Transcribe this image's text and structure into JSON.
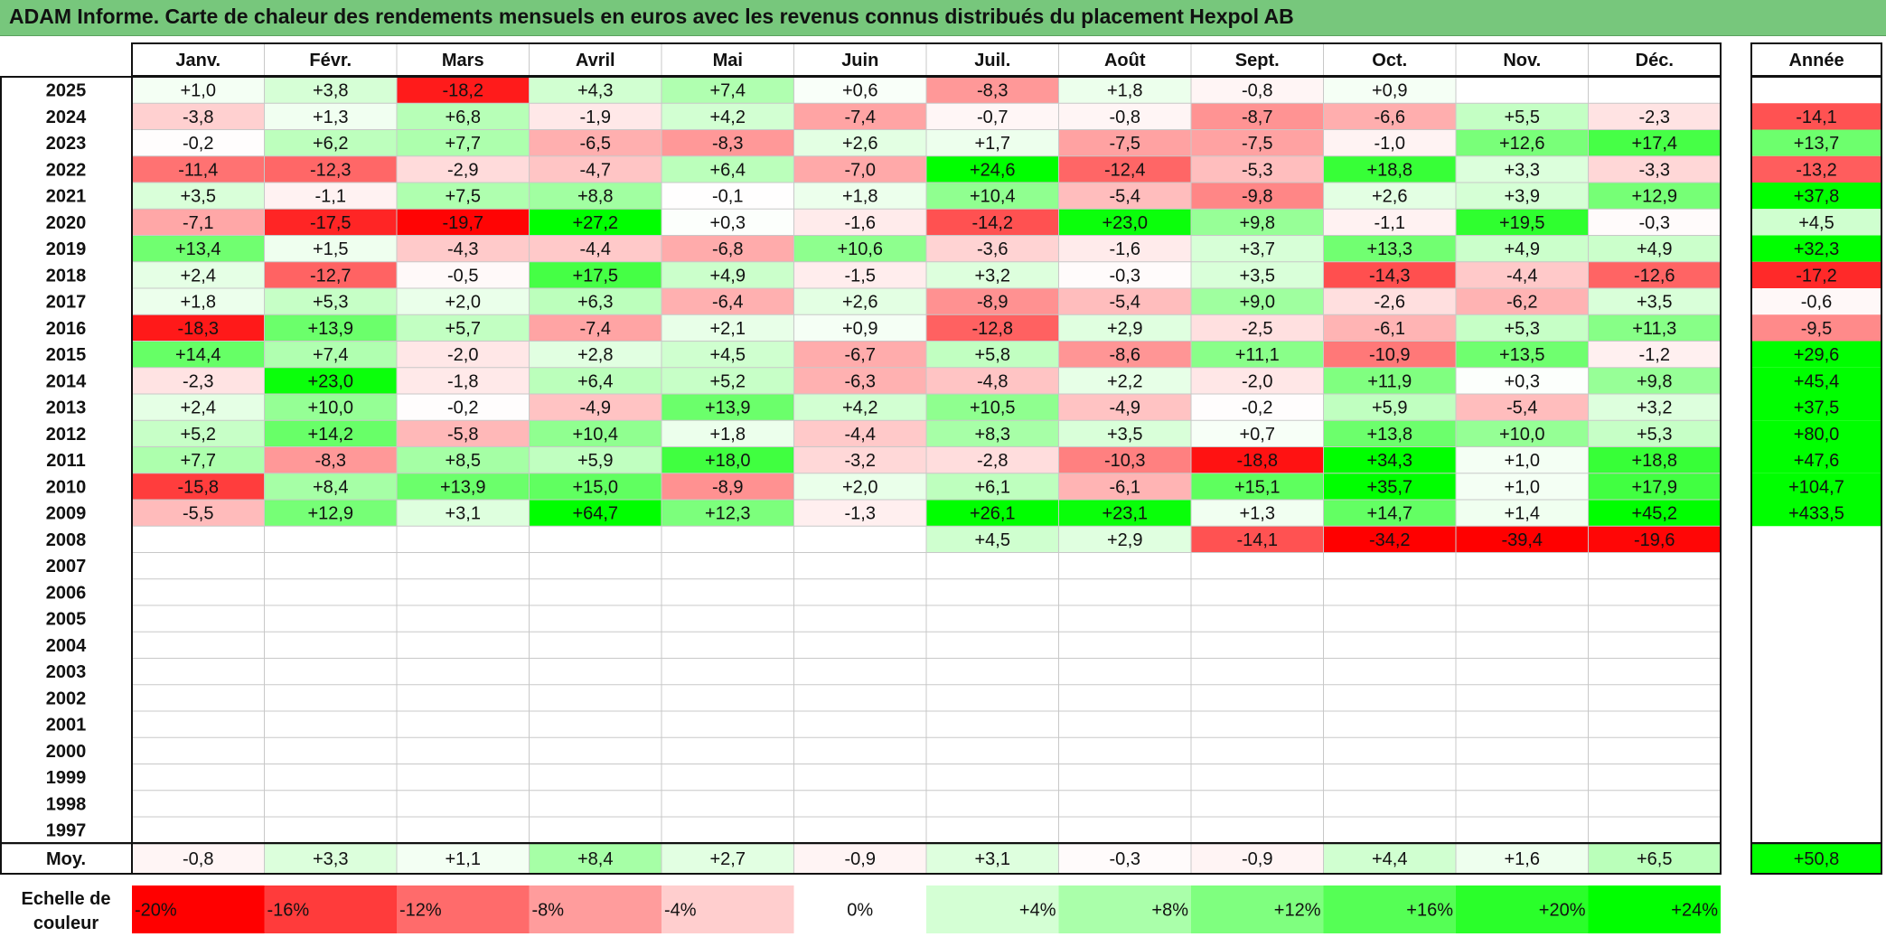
{
  "title": "ADAM Informe. Carte de chaleur des rendements mensuels en euros avec les revenus connus distribués du placement Hexpol AB",
  "chart_data": {
    "type": "heatmap",
    "columns": [
      "Janv.",
      "Févr.",
      "Mars",
      "Avril",
      "Mai",
      "Juin",
      "Juil.",
      "Août",
      "Sept.",
      "Oct.",
      "Nov.",
      "Déc."
    ],
    "year_column_label": "Année",
    "rows": [
      {
        "year": "2025",
        "months": [
          "+1,0",
          "+3,8",
          "-18,2",
          "+4,3",
          "+7,4",
          "+0,6",
          "-8,3",
          "+1,8",
          "-0,8",
          "+0,9",
          "",
          ""
        ],
        "annual": ""
      },
      {
        "year": "2024",
        "months": [
          "-3,8",
          "+1,3",
          "+6,8",
          "-1,9",
          "+4,2",
          "-7,4",
          "-0,7",
          "-0,8",
          "-8,7",
          "-6,6",
          "+5,5",
          "-2,3"
        ],
        "annual": "-14,1"
      },
      {
        "year": "2023",
        "months": [
          "-0,2",
          "+6,2",
          "+7,7",
          "-6,5",
          "-8,3",
          "+2,6",
          "+1,7",
          "-7,5",
          "-7,5",
          "-1,0",
          "+12,6",
          "+17,4"
        ],
        "annual": "+13,7"
      },
      {
        "year": "2022",
        "months": [
          "-11,4",
          "-12,3",
          "-2,9",
          "-4,7",
          "+6,4",
          "-7,0",
          "+24,6",
          "-12,4",
          "-5,3",
          "+18,8",
          "+3,3",
          "-3,3"
        ],
        "annual": "-13,2"
      },
      {
        "year": "2021",
        "months": [
          "+3,5",
          "-1,1",
          "+7,5",
          "+8,8",
          "-0,1",
          "+1,8",
          "+10,4",
          "-5,4",
          "-9,8",
          "+2,6",
          "+3,9",
          "+12,9"
        ],
        "annual": "+37,8"
      },
      {
        "year": "2020",
        "months": [
          "-7,1",
          "-17,5",
          "-19,7",
          "+27,2",
          "+0,3",
          "-1,6",
          "-14,2",
          "+23,0",
          "+9,8",
          "-1,1",
          "+19,5",
          "-0,3"
        ],
        "annual": "+4,5"
      },
      {
        "year": "2019",
        "months": [
          "+13,4",
          "+1,5",
          "-4,3",
          "-4,4",
          "-6,8",
          "+10,6",
          "-3,6",
          "-1,6",
          "+3,7",
          "+13,3",
          "+4,9",
          "+4,9"
        ],
        "annual": "+32,3"
      },
      {
        "year": "2018",
        "months": [
          "+2,4",
          "-12,7",
          "-0,5",
          "+17,5",
          "+4,9",
          "-1,5",
          "+3,2",
          "-0,3",
          "+3,5",
          "-14,3",
          "-4,4",
          "-12,6"
        ],
        "annual": "-17,2"
      },
      {
        "year": "2017",
        "months": [
          "+1,8",
          "+5,3",
          "+2,0",
          "+6,3",
          "-6,4",
          "+2,6",
          "-8,9",
          "-5,4",
          "+9,0",
          "-2,6",
          "-6,2",
          "+3,5"
        ],
        "annual": "-0,6"
      },
      {
        "year": "2016",
        "months": [
          "-18,3",
          "+13,9",
          "+5,7",
          "-7,4",
          "+2,1",
          "+0,9",
          "-12,8",
          "+2,9",
          "-2,5",
          "-6,1",
          "+5,3",
          "+11,3"
        ],
        "annual": "-9,5"
      },
      {
        "year": "2015",
        "months": [
          "+14,4",
          "+7,4",
          "-2,0",
          "+2,8",
          "+4,5",
          "-6,7",
          "+5,8",
          "-8,6",
          "+11,1",
          "-10,9",
          "+13,5",
          "-1,2"
        ],
        "annual": "+29,6"
      },
      {
        "year": "2014",
        "months": [
          "-2,3",
          "+23,0",
          "-1,8",
          "+6,4",
          "+5,2",
          "-6,3",
          "-4,8",
          "+2,2",
          "-2,0",
          "+11,9",
          "+0,3",
          "+9,8"
        ],
        "annual": "+45,4"
      },
      {
        "year": "2013",
        "months": [
          "+2,4",
          "+10,0",
          "-0,2",
          "-4,9",
          "+13,9",
          "+4,2",
          "+10,5",
          "-4,9",
          "-0,2",
          "+5,9",
          "-5,4",
          "+3,2"
        ],
        "annual": "+37,5"
      },
      {
        "year": "2012",
        "months": [
          "+5,2",
          "+14,2",
          "-5,8",
          "+10,4",
          "+1,8",
          "-4,4",
          "+8,3",
          "+3,5",
          "+0,7",
          "+13,8",
          "+10,0",
          "+5,3"
        ],
        "annual": "+80,0"
      },
      {
        "year": "2011",
        "months": [
          "+7,7",
          "-8,3",
          "+8,5",
          "+5,9",
          "+18,0",
          "-3,2",
          "-2,8",
          "-10,3",
          "-18,8",
          "+34,3",
          "+1,0",
          "+18,8"
        ],
        "annual": "+47,6"
      },
      {
        "year": "2010",
        "months": [
          "-15,8",
          "+8,4",
          "+13,9",
          "+15,0",
          "-8,9",
          "+2,0",
          "+6,1",
          "-6,1",
          "+15,1",
          "+35,7",
          "+1,0",
          "+17,9"
        ],
        "annual": "+104,7"
      },
      {
        "year": "2009",
        "months": [
          "-5,5",
          "+12,9",
          "+3,1",
          "+64,7",
          "+12,3",
          "-1,3",
          "+26,1",
          "+23,1",
          "+1,3",
          "+14,7",
          "+1,4",
          "+45,2"
        ],
        "annual": "+433,5"
      },
      {
        "year": "2008",
        "months": [
          "",
          "",
          "",
          "",
          "",
          "",
          "+4,5",
          "+2,9",
          "-14,1",
          "-34,2",
          "-39,4",
          "-19,6"
        ],
        "annual": ""
      },
      {
        "year": "2007",
        "months": [
          "",
          "",
          "",
          "",
          "",
          "",
          "",
          "",
          "",
          "",
          "",
          ""
        ],
        "annual": ""
      },
      {
        "year": "2006",
        "months": [
          "",
          "",
          "",
          "",
          "",
          "",
          "",
          "",
          "",
          "",
          "",
          ""
        ],
        "annual": ""
      },
      {
        "year": "2005",
        "months": [
          "",
          "",
          "",
          "",
          "",
          "",
          "",
          "",
          "",
          "",
          "",
          ""
        ],
        "annual": ""
      },
      {
        "year": "2004",
        "months": [
          "",
          "",
          "",
          "",
          "",
          "",
          "",
          "",
          "",
          "",
          "",
          ""
        ],
        "annual": ""
      },
      {
        "year": "2003",
        "months": [
          "",
          "",
          "",
          "",
          "",
          "",
          "",
          "",
          "",
          "",
          "",
          ""
        ],
        "annual": ""
      },
      {
        "year": "2002",
        "months": [
          "",
          "",
          "",
          "",
          "",
          "",
          "",
          "",
          "",
          "",
          "",
          ""
        ],
        "annual": ""
      },
      {
        "year": "2001",
        "months": [
          "",
          "",
          "",
          "",
          "",
          "",
          "",
          "",
          "",
          "",
          "",
          ""
        ],
        "annual": ""
      },
      {
        "year": "2000",
        "months": [
          "",
          "",
          "",
          "",
          "",
          "",
          "",
          "",
          "",
          "",
          "",
          ""
        ],
        "annual": ""
      },
      {
        "year": "1999",
        "months": [
          "",
          "",
          "",
          "",
          "",
          "",
          "",
          "",
          "",
          "",
          "",
          ""
        ],
        "annual": ""
      },
      {
        "year": "1998",
        "months": [
          "",
          "",
          "",
          "",
          "",
          "",
          "",
          "",
          "",
          "",
          "",
          ""
        ],
        "annual": ""
      },
      {
        "year": "1997",
        "months": [
          "",
          "",
          "",
          "",
          "",
          "",
          "",
          "",
          "",
          "",
          "",
          ""
        ],
        "annual": ""
      }
    ],
    "average": {
      "label": "Moy.",
      "months": [
        "-0,8",
        "+3,3",
        "+1,1",
        "+8,4",
        "+2,7",
        "-0,9",
        "+3,1",
        "-0,3",
        "-0,9",
        "+4,4",
        "+1,6",
        "+6,5"
      ],
      "annual": "+50,8"
    },
    "color_scale": {
      "label": "Echelle de couleur",
      "label_lines": [
        "Echelle de",
        "couleur"
      ],
      "stops": [
        {
          "label": "-20%",
          "value": -20,
          "color": "#ff0000"
        },
        {
          "label": "-16%",
          "value": -16,
          "color": "#ff3b3b"
        },
        {
          "label": "-12%",
          "value": -12,
          "color": "#ff6b6b"
        },
        {
          "label": "-8%",
          "value": -8,
          "color": "#ff9c9c"
        },
        {
          "label": "-4%",
          "value": -4,
          "color": "#ffcece"
        },
        {
          "label": "0%",
          "value": 0,
          "color": "#ffffff"
        },
        {
          "label": "+4%",
          "value": 4,
          "color": "#d4ffd4"
        },
        {
          "label": "+8%",
          "value": 8,
          "color": "#aaffaa"
        },
        {
          "label": "+12%",
          "value": 12,
          "color": "#7fff7f"
        },
        {
          "label": "+16%",
          "value": 16,
          "color": "#55ff55"
        },
        {
          "label": "+20%",
          "value": 20,
          "color": "#2aff2a"
        },
        {
          "label": "+24%",
          "value": 24,
          "color": "#00ff00"
        }
      ]
    }
  }
}
